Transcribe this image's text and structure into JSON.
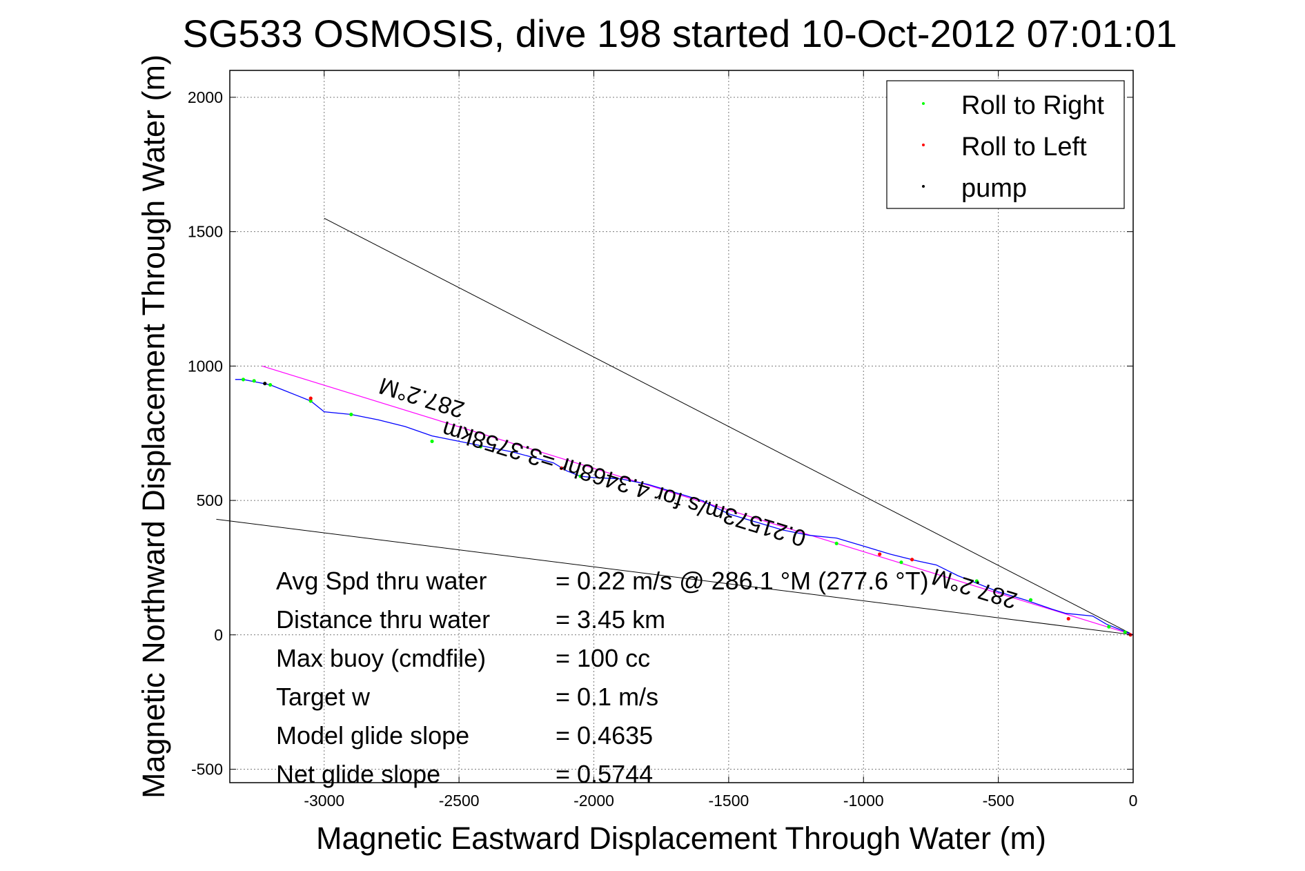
{
  "chart_data": {
    "type": "line",
    "title": "SG533 OSMOSIS, dive 198 started 10-Oct-2012 07:01:01",
    "xlabel": "Magnetic Eastward Displacement Through Water (m)",
    "ylabel": "Magnetic Northward Displacement Through Water (m)",
    "xlim": [
      -3350,
      0
    ],
    "ylim": [
      -550,
      2100
    ],
    "xticks": [
      -3000,
      -2500,
      -2000,
      -1500,
      -1000,
      -500,
      0
    ],
    "yticks": [
      -500,
      0,
      500,
      1000,
      1500,
      2000
    ],
    "grid": true,
    "legend": {
      "position": "top-right",
      "entries": [
        {
          "label": "Roll to Right",
          "color": "#00ff00"
        },
        {
          "label": "Roll to Left",
          "color": "#ff0000"
        },
        {
          "label": "pump",
          "color": "#000000"
        }
      ]
    },
    "track": {
      "color": "#0000ff",
      "x": [
        0,
        -50,
        -100,
        -150,
        -250,
        -300,
        -400,
        -500,
        -650,
        -730,
        -800,
        -900,
        -1000,
        -1100,
        -1200,
        -1300,
        -1400,
        -1500,
        -1600,
        -1700,
        -1800,
        -1900,
        -2000,
        -2050,
        -2100,
        -2150,
        -2300,
        -2400,
        -2500,
        -2600,
        -2700,
        -2800,
        -2900,
        -3000,
        -3050,
        -3100,
        -3150,
        -3200,
        -3250,
        -3300,
        -3330
      ],
      "y": [
        0,
        20,
        40,
        70,
        80,
        95,
        130,
        160,
        220,
        260,
        275,
        300,
        330,
        360,
        370,
        390,
        420,
        450,
        500,
        530,
        560,
        580,
        585,
        590,
        610,
        640,
        680,
        700,
        720,
        740,
        775,
        800,
        820,
        830,
        870,
        890,
        910,
        930,
        940,
        950,
        950
      ]
    },
    "markers": {
      "roll_right": {
        "x": [
          -30,
          -90,
          -380,
          -580,
          -860,
          -1100,
          -2050,
          -2420,
          -2600,
          -2900,
          -3050,
          -3200,
          -3260,
          -3300
        ],
        "y": [
          10,
          30,
          130,
          200,
          270,
          340,
          590,
          700,
          720,
          820,
          870,
          930,
          945,
          950
        ]
      },
      "roll_left": {
        "x": [
          -10,
          -240,
          -820,
          -940,
          -2120,
          -3050
        ],
        "y": [
          0,
          60,
          280,
          300,
          620,
          880
        ]
      },
      "pump": {
        "x": [
          -3220
        ],
        "y": [
          935
        ]
      }
    },
    "mean_heading_line": {
      "color": "#ff00ff",
      "x": [
        0,
        -3230
      ],
      "y": [
        0,
        1000
      ]
    },
    "bounding_lines": [
      {
        "color": "#000000",
        "x": [
          0,
          -3000
        ],
        "y": [
          0,
          1550
        ]
      },
      {
        "color": "#000000",
        "x": [
          0,
          -3400
        ],
        "y": [
          0,
          430
        ]
      }
    ],
    "annotations": [
      {
        "text": "287.2°M",
        "x": -2630,
        "y": 910,
        "rotation": 197
      },
      {
        "text": "0.21573m/s for 4.3468hr =3.3758km",
        "x": -1880,
        "y": 590,
        "rotation": 197
      },
      {
        "text": "287.2°M",
        "x": -580,
        "y": 200,
        "rotation": 197
      }
    ],
    "stats": [
      {
        "label": "Avg Spd thru water",
        "value": "=  0.22 m/s @ 286.1 °M (277.6 °T)"
      },
      {
        "label": "Distance thru water",
        "value": "=  3.45 km"
      },
      {
        "label": "Max buoy (cmdfile)",
        "value": "= 100 cc"
      },
      {
        "label": "Target w",
        "value": "= 0.1 m/s"
      },
      {
        "label": "Model glide slope",
        "value": "= 0.4635"
      },
      {
        "label": "Net glide slope",
        "value": "= 0.5744"
      }
    ]
  }
}
